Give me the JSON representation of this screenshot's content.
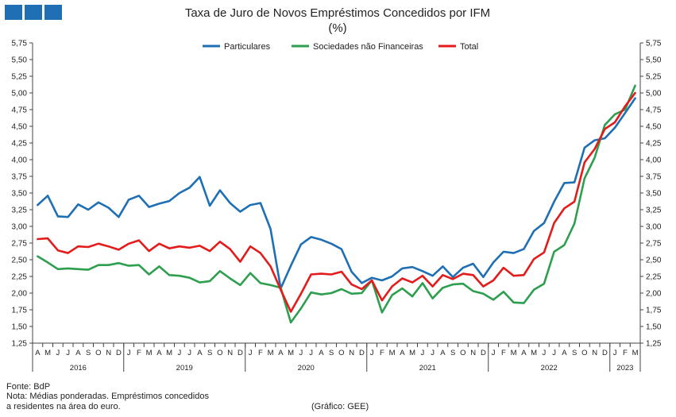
{
  "header": {
    "title": "Taxa de Juro de Novos Empréstimos  Concedidos por IFM",
    "subtitle": "(%)"
  },
  "logo": {
    "color": "#1f6fb5"
  },
  "footer": {
    "source": "Fonte: BdP",
    "note_line1": "Nota: Médias ponderadas. Empréstimos concedidos",
    "note_line2": "a residentes na área do euro.",
    "credit": "(Gráfico: GEE)"
  },
  "chart_data": {
    "type": "line",
    "title": "Taxa de Juro de Novos Empréstimos  Concedidos por IFM",
    "subtitle": "(%)",
    "ylim": [
      1.25,
      5.75
    ],
    "yticks": [
      "1,25",
      "1,50",
      "1,75",
      "2,00",
      "2,25",
      "2,50",
      "2,75",
      "3,00",
      "3,25",
      "3,50",
      "3,75",
      "4,00",
      "4,25",
      "4,50",
      "4,75",
      "5,00",
      "5,25",
      "5,50",
      "5,75"
    ],
    "ytick_values": [
      1.25,
      1.5,
      1.75,
      2.0,
      2.25,
      2.5,
      2.75,
      3.0,
      3.25,
      3.5,
      3.75,
      4.0,
      4.25,
      4.5,
      4.75,
      5.0,
      5.25,
      5.5,
      5.75
    ],
    "grid": false,
    "legend_position": "top-center",
    "x": [
      "A",
      "M",
      "J",
      "J",
      "A",
      "S",
      "O",
      "N",
      "D",
      "J",
      "F",
      "M",
      "A",
      "M",
      "J",
      "J",
      "A",
      "S",
      "O",
      "N",
      "D",
      "J",
      "F",
      "M",
      "A",
      "M",
      "J",
      "J",
      "A",
      "S",
      "O",
      "N",
      "D",
      "J",
      "F",
      "M",
      "A",
      "M",
      "J",
      "J",
      "A",
      "S",
      "O",
      "N",
      "D",
      "J",
      "F",
      "M",
      "A",
      "M",
      "J",
      "J",
      "A",
      "S",
      "O",
      "N",
      "D",
      "J",
      "F",
      "M"
    ],
    "year_groups": [
      {
        "label": "2016",
        "count": 9
      },
      {
        "label": "2019",
        "count": 12
      },
      {
        "label": "2020",
        "count": 12
      },
      {
        "label": "2021",
        "count": 12
      },
      {
        "label": "2022",
        "count": 12
      },
      {
        "label": "2023",
        "count": 3
      }
    ],
    "series": [
      {
        "name": "Particulares",
        "color": "#1f6fb5",
        "values": [
          3.32,
          3.46,
          3.15,
          3.14,
          3.33,
          3.25,
          3.36,
          3.28,
          3.14,
          3.4,
          3.46,
          3.29,
          3.34,
          3.38,
          3.5,
          3.58,
          3.74,
          3.31,
          3.54,
          3.35,
          3.22,
          3.32,
          3.35,
          2.96,
          2.07,
          2.41,
          2.73,
          2.84,
          2.8,
          2.74,
          2.66,
          2.32,
          2.15,
          2.23,
          2.19,
          2.25,
          2.37,
          2.39,
          2.33,
          2.26,
          2.4,
          2.24,
          2.38,
          2.44,
          2.24,
          2.46,
          2.62,
          2.6,
          2.66,
          2.93,
          3.05,
          3.37,
          3.65,
          3.66,
          4.18,
          4.29,
          4.32,
          4.48,
          4.7,
          4.92
        ]
      },
      {
        "name": "Sociedades não Financeiras",
        "color": "#2e9e4f",
        "values": [
          2.55,
          2.46,
          2.36,
          2.37,
          2.36,
          2.35,
          2.42,
          2.42,
          2.45,
          2.41,
          2.42,
          2.28,
          2.4,
          2.27,
          2.26,
          2.23,
          2.16,
          2.18,
          2.33,
          2.22,
          2.12,
          2.3,
          2.15,
          2.12,
          2.08,
          1.56,
          1.77,
          2.01,
          1.98,
          2.0,
          2.06,
          1.99,
          2.0,
          2.19,
          1.71,
          1.97,
          2.07,
          1.95,
          2.15,
          1.92,
          2.08,
          2.13,
          2.14,
          2.03,
          1.99,
          1.9,
          2.02,
          1.86,
          1.85,
          2.05,
          2.14,
          2.62,
          2.72,
          3.04,
          3.72,
          4.03,
          4.52,
          4.68,
          4.75,
          5.11
        ]
      },
      {
        "name": "Total",
        "color": "#e31b1b",
        "values": [
          2.81,
          2.82,
          2.64,
          2.6,
          2.7,
          2.69,
          2.74,
          2.7,
          2.65,
          2.74,
          2.79,
          2.63,
          2.74,
          2.67,
          2.7,
          2.68,
          2.71,
          2.63,
          2.77,
          2.66,
          2.47,
          2.7,
          2.6,
          2.4,
          2.05,
          1.72,
          1.99,
          2.28,
          2.29,
          2.28,
          2.32,
          2.13,
          2.06,
          2.19,
          1.89,
          2.1,
          2.22,
          2.16,
          2.26,
          2.1,
          2.27,
          2.21,
          2.29,
          2.27,
          2.1,
          2.19,
          2.38,
          2.26,
          2.27,
          2.51,
          2.61,
          3.05,
          3.27,
          3.37,
          3.96,
          4.16,
          4.46,
          4.56,
          4.8,
          5.0
        ]
      }
    ]
  }
}
